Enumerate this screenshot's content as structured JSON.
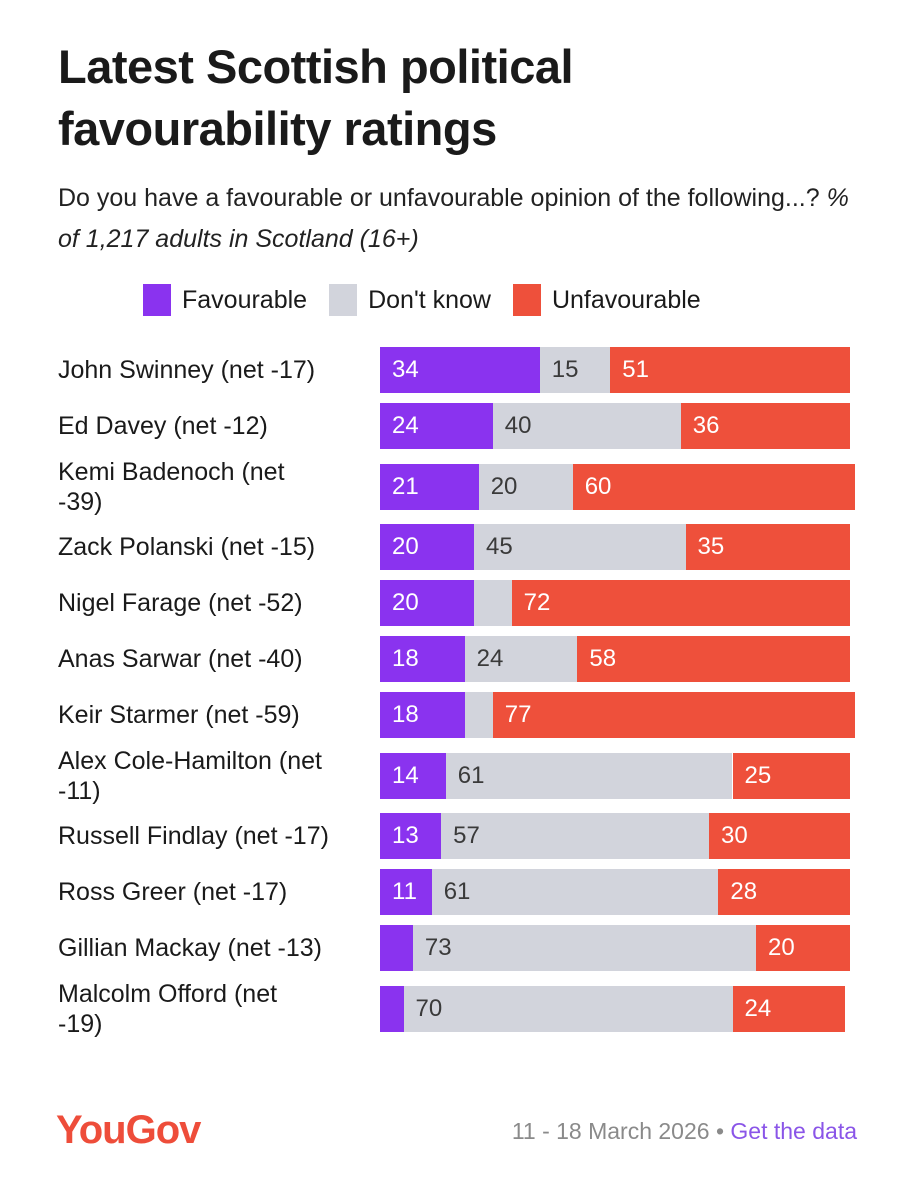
{
  "chart_data": {
    "type": "stacked_bar",
    "title": "Latest Scottish political favourability ratings",
    "subtitle": "Do you have a favourable or unfavourable opinion of the following...?",
    "subtitle_note": "% of 1,217 adults in Scotland (16+)",
    "categories": [
      "John Swinney (net -17)",
      "Ed Davey (net -12)",
      "Kemi Badenoch (net -39)",
      "Zack Polanski (net -15)",
      "Nigel Farage (net -52)",
      "Anas Sarwar (net -40)",
      "Keir Starmer (net -59)",
      "Alex Cole-Hamilton (net -11)",
      "Russell Findlay (net -17)",
      "Ross Greer (net -17)",
      "Gillian Mackay (net -13)",
      "Malcolm Offord (net -19)"
    ],
    "series": [
      {
        "name": "Favourable",
        "color": "#8a33ef",
        "label_color": "#ffffff",
        "values": [
          34,
          24,
          21,
          20,
          20,
          18,
          18,
          14,
          13,
          11,
          7,
          5
        ]
      },
      {
        "name": "Don't know",
        "color": "#d2d4dc",
        "label_color": "#3a3a3a",
        "values": [
          15,
          40,
          20,
          45,
          8,
          24,
          6,
          61,
          57,
          61,
          73,
          70
        ]
      },
      {
        "name": "Unfavourable",
        "color": "#ee503b",
        "label_color": "#ffffff",
        "values": [
          51,
          36,
          60,
          35,
          72,
          58,
          77,
          25,
          30,
          28,
          20,
          24
        ]
      }
    ],
    "xlim": [
      0,
      100
    ],
    "legend": "top"
  },
  "footer": {
    "logo": "YouGov",
    "date": "11 - 18 March 2026",
    "separator": "•",
    "link": "Get the data"
  }
}
